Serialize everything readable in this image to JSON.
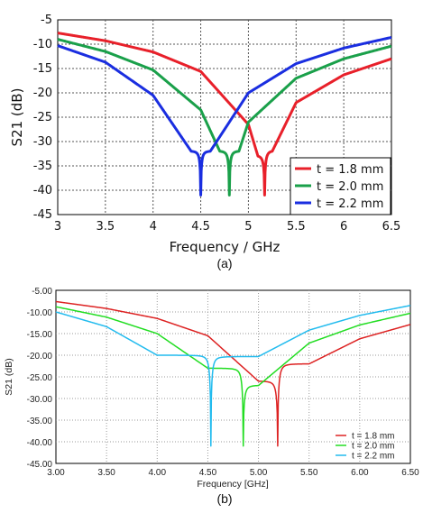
{
  "chart_data": [
    {
      "type": "line",
      "caption": "(a)",
      "xlabel": "Frequency / GHz",
      "ylabel": "S21 (dB)",
      "xlim": [
        3,
        6.5
      ],
      "ylim": [
        -45,
        -5
      ],
      "xticks": [
        "3",
        "3.5",
        "4",
        "4.5",
        "5",
        "5.5",
        "6",
        "6.5"
      ],
      "yticks": [
        "-5",
        "-10",
        "-15",
        "-20",
        "-25",
        "-30",
        "-35",
        "-40",
        "-45"
      ],
      "grid": true,
      "legend_position": "bottom-right",
      "series": [
        {
          "name": "t = 1.8 mm",
          "color": "#e8202a",
          "f0": 5.17,
          "min_db": -41.0,
          "x": [
            3.0,
            3.5,
            4.0,
            4.5,
            5.0,
            5.1,
            5.17,
            5.25,
            5.5,
            6.0,
            6.5
          ],
          "y": [
            -7.7,
            -9.3,
            -11.6,
            -15.6,
            -26.5,
            -33.0,
            -41.0,
            -32.0,
            -22.0,
            -16.3,
            -13.0
          ]
        },
        {
          "name": "t = 2.0 mm",
          "color": "#1aa04a",
          "f0": 4.8,
          "min_db": -41.0,
          "x": [
            3.0,
            3.5,
            4.0,
            4.5,
            4.7,
            4.8,
            4.9,
            5.0,
            5.5,
            6.0,
            6.5
          ],
          "y": [
            -9.0,
            -11.5,
            -15.3,
            -23.5,
            -32.0,
            -41.0,
            -32.0,
            -26.0,
            -17.0,
            -13.0,
            -10.4
          ]
        },
        {
          "name": "t = 2.2 mm",
          "color": "#1a2ee0",
          "f0": 4.5,
          "min_db": -41.0,
          "x": [
            3.0,
            3.5,
            4.0,
            4.4,
            4.5,
            4.6,
            5.0,
            5.5,
            6.0,
            6.5
          ],
          "y": [
            -10.3,
            -13.7,
            -20.5,
            -32.0,
            -41.0,
            -32.0,
            -20.0,
            -14.0,
            -10.8,
            -8.6
          ]
        }
      ]
    },
    {
      "type": "line",
      "caption": "(b)",
      "xlabel": "Frequency [GHz]",
      "ylabel": "S21 (dB)",
      "xlim": [
        3,
        6.5
      ],
      "ylim": [
        -45,
        -5
      ],
      "xticks": [
        "3.00",
        "3.50",
        "4.00",
        "4.50",
        "5.00",
        "5.50",
        "6.00",
        "6.50"
      ],
      "yticks": [
        "-5.00",
        "-10.00",
        "-15.00",
        "-20.00",
        "-25.00",
        "-30.00",
        "-35.00",
        "-40.00",
        "-45.00"
      ],
      "grid": true,
      "legend_position": "bottom-right",
      "series": [
        {
          "name": "t = 1.8 mm",
          "color": "#dd2222",
          "f0": 5.19,
          "min_db": -41.0,
          "x": [
            3.0,
            3.5,
            4.0,
            4.5,
            5.0,
            5.19,
            5.5,
            6.0,
            6.5
          ],
          "y": [
            -7.6,
            -9.2,
            -11.5,
            -15.5,
            -26.0,
            -41.0,
            -22.0,
            -16.2,
            -12.9
          ]
        },
        {
          "name": "t = 2.0 mm",
          "color": "#22dd22",
          "f0": 4.85,
          "min_db": -41.0,
          "x": [
            3.0,
            3.5,
            4.0,
            4.5,
            4.85,
            5.0,
            5.5,
            6.0,
            6.5
          ],
          "y": [
            -8.8,
            -11.2,
            -15.0,
            -23.0,
            -41.0,
            -27.0,
            -17.2,
            -13.0,
            -10.3
          ]
        },
        {
          "name": "t = 2.2 mm",
          "color": "#22bbee",
          "f0": 4.53,
          "min_db": -41.0,
          "x": [
            3.0,
            3.5,
            4.0,
            4.53,
            5.0,
            5.5,
            6.0,
            6.5
          ],
          "y": [
            -10.0,
            -13.4,
            -20.0,
            -41.0,
            -20.3,
            -14.2,
            -10.8,
            -8.5
          ]
        }
      ]
    }
  ]
}
